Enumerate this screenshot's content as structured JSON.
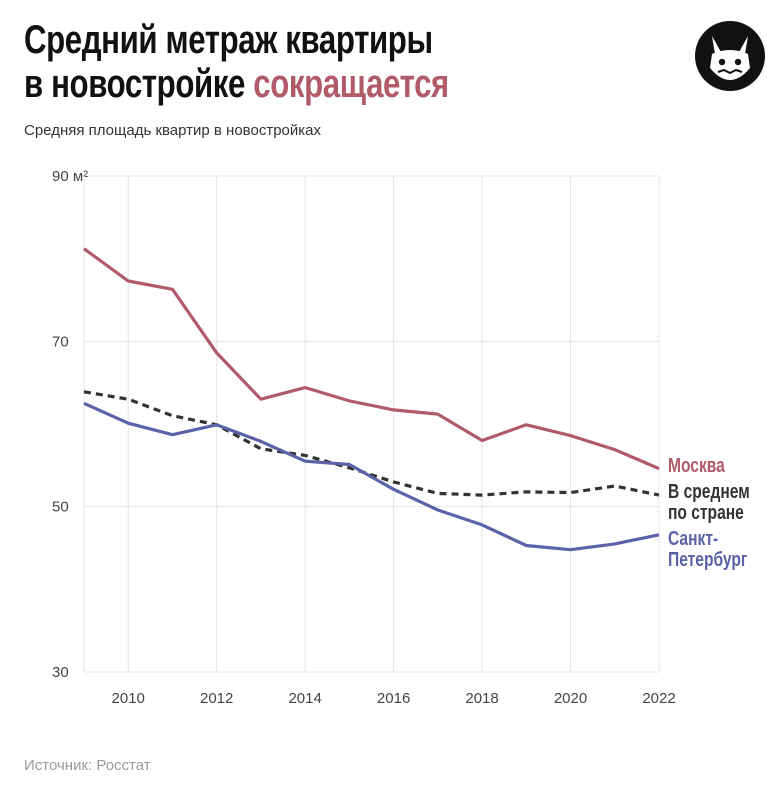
{
  "header": {
    "title_line1": "Средний метраж квартиры",
    "title_line2_plain": "в новостройке ",
    "title_line2_accent": "сокращается",
    "subtitle": "Средняя площадь квартир в новостройках",
    "source": "Источник: Росстат"
  },
  "colors": {
    "accent": "#b05a6a",
    "moscow": "#b05a6a",
    "spb": "#5a63a8",
    "national": "#333333",
    "grid": "#e6e6e6"
  },
  "logo": {
    "icon": "fox-mascot-icon"
  },
  "chart_data": {
    "type": "line",
    "ylim": [
      30,
      90
    ],
    "xlim": [
      2009,
      2022
    ],
    "yticks": [
      30,
      50,
      70,
      90
    ],
    "ytick_labels": [
      "30",
      "50",
      "70",
      "90 м²"
    ],
    "xticks": [
      2010,
      2012,
      2014,
      2016,
      2018,
      2020,
      2022
    ],
    "xtick_labels": [
      "2010",
      "2012",
      "2014",
      "2016",
      "2018",
      "2020",
      "2022"
    ],
    "grid": true,
    "x": [
      2009,
      2010,
      2011,
      2012,
      2013,
      2014,
      2015,
      2016,
      2017,
      2018,
      2019,
      2020,
      2021,
      2022
    ],
    "series": [
      {
        "name": "Москва",
        "label_lines": [
          "Москва"
        ],
        "style": "solid",
        "color": "#b05a6a",
        "values": [
          81.2,
          77.3,
          76.3,
          68.6,
          63.0,
          64.4,
          62.8,
          61.7,
          61.2,
          58.0,
          59.9,
          58.6,
          56.9,
          54.6
        ]
      },
      {
        "name": "В среднем по стране",
        "label_lines": [
          "В среднем",
          "по стране"
        ],
        "style": "dashed",
        "color": "#333333",
        "values": [
          63.9,
          63.0,
          61.0,
          59.9,
          57.0,
          56.2,
          54.7,
          53.0,
          51.6,
          51.4,
          51.8,
          51.7,
          52.5,
          51.4
        ]
      },
      {
        "name": "Санкт-Петербург",
        "label_lines": [
          "Санкт-",
          "Петербург"
        ],
        "style": "solid",
        "color": "#5a63a8",
        "values": [
          62.5,
          60.1,
          58.7,
          59.9,
          57.9,
          55.5,
          55.1,
          52.1,
          49.6,
          47.8,
          45.3,
          44.8,
          45.5,
          46.6
        ]
      }
    ]
  }
}
